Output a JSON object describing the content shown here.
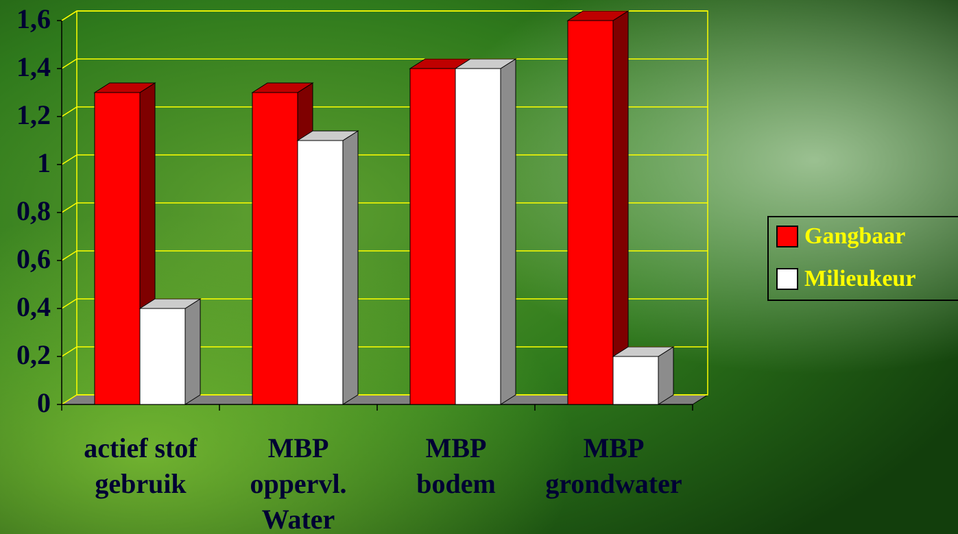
{
  "chart_data": {
    "type": "bar3d",
    "categories": [
      [
        "actief stof",
        "gebruik"
      ],
      [
        "MBP",
        "oppervl.",
        "Water"
      ],
      [
        "MBP",
        "bodem"
      ],
      [
        "MBP",
        "grondwater"
      ]
    ],
    "series": [
      {
        "name": "Gangbaar",
        "color": "#ff0000",
        "values": [
          1.3,
          1.3,
          1.4,
          1.6
        ]
      },
      {
        "name": "Milieukeur",
        "color": "#ffffff",
        "values": [
          0.4,
          1.1,
          1.4,
          0.2
        ]
      }
    ],
    "ylim": [
      0,
      1.6
    ],
    "yticks": [
      0,
      {
        "value": 0.2,
        "label": "0,2"
      },
      {
        "value": 0.4,
        "label": "0,4"
      },
      {
        "value": 0.6,
        "label": "0,6"
      },
      {
        "value": 0.8,
        "label": "0,8"
      },
      1,
      {
        "value": 1.2,
        "label": "1,2"
      },
      {
        "value": 1.4,
        "label": "1,4"
      },
      {
        "value": 1.6,
        "label": "1,6"
      }
    ],
    "grid": true,
    "grid_color": "#ffff00",
    "legend": "right"
  }
}
